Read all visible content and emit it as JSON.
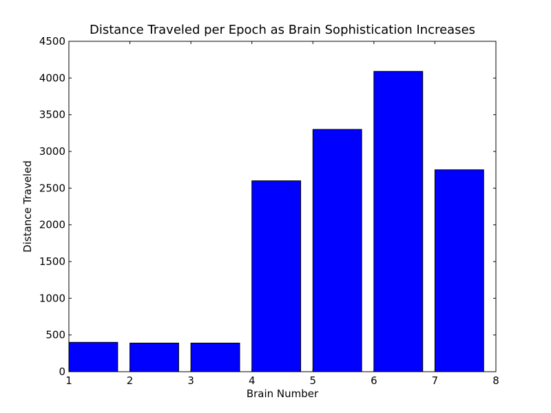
{
  "chart_data": {
    "type": "bar",
    "title": "Distance Traveled per Epoch as Brain Sophistication Increases",
    "xlabel": "Brain Number",
    "ylabel": "Distance Traveled",
    "categories": [
      "1",
      "2",
      "3",
      "4",
      "5",
      "6",
      "7"
    ],
    "values": [
      400,
      390,
      390,
      2600,
      3300,
      4090,
      2750
    ],
    "bar_start_x": [
      1,
      2,
      3,
      4,
      5,
      6,
      7
    ],
    "bar_width": 0.8,
    "xlim": [
      1,
      8
    ],
    "ylim": [
      0,
      4500
    ],
    "xticks": [
      "1",
      "2",
      "3",
      "4",
      "5",
      "6",
      "7",
      "8"
    ],
    "yticks": [
      "0",
      "500",
      "1000",
      "1500",
      "2000",
      "2500",
      "3000",
      "3500",
      "4000",
      "4500"
    ],
    "grid": false,
    "legend": "none",
    "colors": {
      "bar": "#0000ff",
      "bar_edge": "#000000",
      "axes": "#000000",
      "background": "#ffffff"
    }
  }
}
